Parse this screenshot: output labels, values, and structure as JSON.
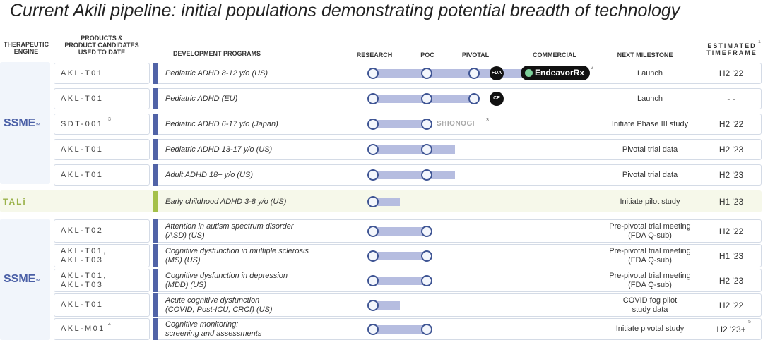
{
  "title": "Current Akili pipeline: initial populations demonstrating potential breadth of technology",
  "headers": {
    "engine": "THERAPEUTIC\nENGINE",
    "products": "PRODUCTS &\nPRODUCT CANDIDATES\nUSED TO DATE",
    "programs": "DEVELOPMENT PROGRAMS",
    "research": "RESEARCH",
    "poc": "POC",
    "pivotal": "PIVOTAL",
    "commercial": "COMMERCIAL",
    "milestone": "NEXT MILESTONE",
    "timeframe": "ESTIMATED\nTIMEFRAME",
    "timeframe_sup": "1"
  },
  "engines": {
    "ssme_top": "SSME",
    "ssme_bottom": "SSME",
    "tm": "™",
    "tali": "TALi"
  },
  "badges": {
    "fda": "FDA",
    "ce": "CE",
    "endeavor": "EndeavorRx",
    "endeavor_sup": "2",
    "shionogi": "SHIONOGI",
    "shionogi_sup": "3"
  },
  "stage_progress_note": "stage reached per row: 1=Research 2=POC 3=Pivotal 4=Commercial",
  "rows": [
    {
      "product": "AKL-T01",
      "product_sup": "",
      "program": "Pediatric ADHD 8-12 y/o (US)",
      "stage": 4,
      "milestone": "Launch",
      "timeframe": "H2 '22",
      "timeframe_sup": ""
    },
    {
      "product": "AKL-T01",
      "product_sup": "",
      "program": "Pediatric ADHD (EU)",
      "stage": 3,
      "milestone": "Launch",
      "timeframe": "- -",
      "timeframe_sup": ""
    },
    {
      "product": "SDT-001",
      "product_sup": "3",
      "program": "Pediatric ADHD 6-17 y/o (Japan)",
      "stage": 2,
      "milestone": "Initiate Phase III study",
      "timeframe": "H2 '22",
      "timeframe_sup": ""
    },
    {
      "product": "AKL-T01",
      "product_sup": "",
      "program": "Pediatric ADHD 13-17 y/o (US)",
      "stage": 2.6,
      "milestone": "Pivotal trial data",
      "timeframe": "H2 '23",
      "timeframe_sup": ""
    },
    {
      "product": "AKL-T01",
      "product_sup": "",
      "program": "Adult ADHD 18+ y/o (US)",
      "stage": 2.6,
      "milestone": "Pivotal trial data",
      "timeframe": "H2 '23",
      "timeframe_sup": ""
    },
    {
      "product": "",
      "product_sup": "",
      "program": "Early childhood ADHD 3-8  y/o (US)",
      "stage": 1.5,
      "milestone": "Initiate pilot study",
      "timeframe": "H1 '23",
      "timeframe_sup": ""
    },
    {
      "product": "AKL-T02",
      "product_sup": "",
      "program": "Attention in autism spectrum disorder\n(ASD) (US)",
      "stage": 2,
      "milestone": "Pre-pivotal trial meeting\n(FDA Q-sub)",
      "timeframe": "H2 '22",
      "timeframe_sup": ""
    },
    {
      "product": "AKL-T01,\nAKL-T03",
      "product_sup": "",
      "program": "Cognitive dysfunction in multiple sclerosis\n(MS) (US)",
      "stage": 2,
      "milestone": "Pre-pivotal trial meeting\n(FDA Q-sub)",
      "timeframe": "H1 '23",
      "timeframe_sup": ""
    },
    {
      "product": "AKL-T01,\nAKL-T03",
      "product_sup": "",
      "program": "Cognitive dysfunction in depression\n(MDD) (US)",
      "stage": 2,
      "milestone": "Pre-pivotal trial meeting\n(FDA Q-sub)",
      "timeframe": "H2 '23",
      "timeframe_sup": ""
    },
    {
      "product": "AKL-T01",
      "product_sup": "",
      "program": "Acute cognitive dysfunction\n(COVID, Post-ICU, CRCI) (US)",
      "stage": 1.5,
      "milestone": "COVID fog pilot\nstudy data",
      "timeframe": "H2 '22",
      "timeframe_sup": ""
    },
    {
      "product": "AKL-M01",
      "product_sup": "4",
      "program": "Cognitive monitoring:\nscreening and assessments",
      "stage": 2,
      "milestone": "Initiate pivotal study",
      "timeframe": "H2 '23+",
      "timeframe_sup": "5"
    }
  ]
}
